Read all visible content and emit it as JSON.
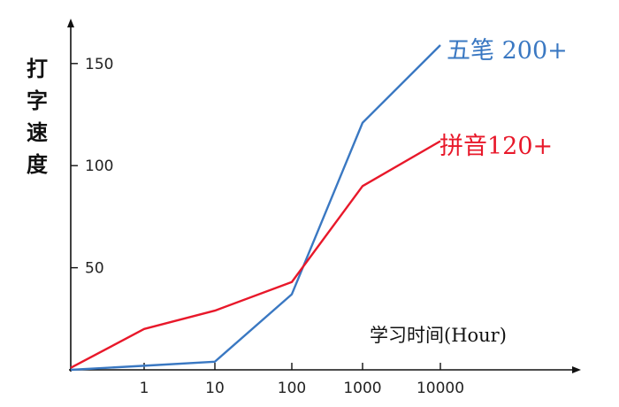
{
  "chart_data": {
    "type": "line",
    "title": "",
    "ylabel": "打字速度",
    "xlabel": "学习时间(Hour)",
    "x_categories": [
      "",
      "1",
      "10",
      "100",
      "1000",
      "10000"
    ],
    "yticks": [
      "50",
      "100",
      "150"
    ],
    "ylim": [
      0,
      170
    ],
    "grid": false,
    "series": [
      {
        "name": "五笔 200+",
        "color": "#3a78c2",
        "points": [
          [
            0,
            0
          ],
          [
            1,
            2
          ],
          [
            2,
            4
          ],
          [
            3,
            37
          ],
          [
            4,
            121
          ],
          [
            5,
            159
          ]
        ]
      },
      {
        "name": "拼音120+",
        "color": "#e8182a",
        "points": [
          [
            0,
            1
          ],
          [
            1,
            20
          ],
          [
            2,
            29
          ],
          [
            3,
            43
          ],
          [
            4,
            90
          ],
          [
            5,
            112
          ]
        ]
      }
    ]
  },
  "colors": {
    "axis": "#111111"
  }
}
